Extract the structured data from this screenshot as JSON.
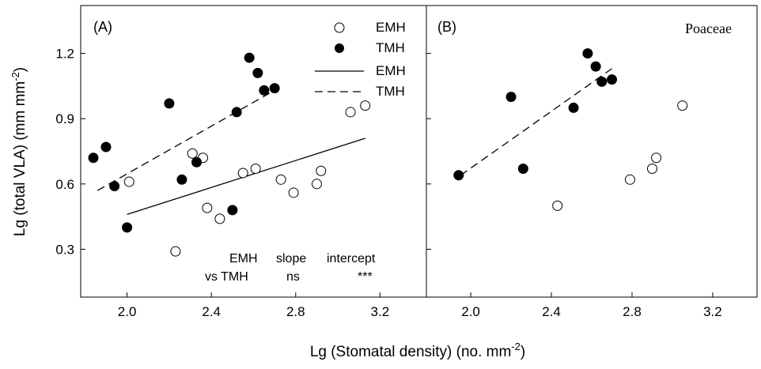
{
  "figure": {
    "ylabel": "Lg (total VLA) (mm mm",
    "ylabel_sup": "-2",
    "ylabel_end": ")",
    "xlabel": "Lg (Stomatal density) (no. mm",
    "xlabel_sup": "-2",
    "xlabel_end": ")"
  },
  "chart_data": [
    {
      "type": "scatter",
      "panel_label": "(A)",
      "xlim": [
        1.78,
        3.42
      ],
      "ylim": [
        0.08,
        1.42
      ],
      "xticks": [
        2.0,
        2.4,
        2.8,
        3.2
      ],
      "xtick_labels": [
        "2.0",
        "2.4",
        "2.8",
        "3.2"
      ],
      "yticks": [
        0.3,
        0.6,
        0.9,
        1.2
      ],
      "ytick_labels": [
        "0.3",
        "0.6",
        "0.9",
        "1.2"
      ],
      "grid": false,
      "legend_position": "top-right",
      "legend": [
        {
          "label": "EMH",
          "kind": "open-circle"
        },
        {
          "label": "TMH",
          "kind": "filled-circle"
        },
        {
          "label": "EMH",
          "kind": "solid-line"
        },
        {
          "label": "TMH",
          "kind": "dashed-line"
        }
      ],
      "series": [
        {
          "name": "EMH",
          "marker": "open",
          "points": [
            [
              2.01,
              0.61
            ],
            [
              2.23,
              0.29
            ],
            [
              2.31,
              0.74
            ],
            [
              2.36,
              0.72
            ],
            [
              2.38,
              0.49
            ],
            [
              2.44,
              0.44
            ],
            [
              2.55,
              0.65
            ],
            [
              2.61,
              0.67
            ],
            [
              2.73,
              0.62
            ],
            [
              2.79,
              0.56
            ],
            [
              2.9,
              0.6
            ],
            [
              2.92,
              0.66
            ],
            [
              3.06,
              0.93
            ],
            [
              3.13,
              0.96
            ]
          ]
        },
        {
          "name": "TMH",
          "marker": "filled",
          "points": [
            [
              1.84,
              0.72
            ],
            [
              1.9,
              0.77
            ],
            [
              1.94,
              0.59
            ],
            [
              2.0,
              0.4
            ],
            [
              2.2,
              0.97
            ],
            [
              2.26,
              0.62
            ],
            [
              2.33,
              0.7
            ],
            [
              2.5,
              0.48
            ],
            [
              2.52,
              0.93
            ],
            [
              2.58,
              1.18
            ],
            [
              2.62,
              1.11
            ],
            [
              2.65,
              1.03
            ],
            [
              2.7,
              1.04
            ]
          ]
        }
      ],
      "fits": [
        {
          "name": "EMH",
          "style": "solid",
          "x": [
            2.0,
            3.13
          ],
          "y": [
            0.46,
            0.81
          ]
        },
        {
          "name": "TMH",
          "style": "dashed",
          "x": [
            1.86,
            2.7
          ],
          "y": [
            0.57,
            1.03
          ]
        }
      ],
      "annotation": {
        "row1": [
          "EMH",
          "slope",
          "intercept"
        ],
        "row2": [
          "vs TMH",
          "ns",
          "***"
        ]
      }
    },
    {
      "type": "scatter",
      "panel_label": "(B)",
      "title": "Poaceae",
      "xlim": [
        1.78,
        3.42
      ],
      "ylim": [
        0.08,
        1.42
      ],
      "xticks": [
        2.0,
        2.4,
        2.8,
        3.2
      ],
      "xtick_labels": [
        "2.0",
        "2.4",
        "2.8",
        "3.2"
      ],
      "yticks": [
        0.3,
        0.6,
        0.9,
        1.2
      ],
      "grid": false,
      "series": [
        {
          "name": "EMH",
          "marker": "open",
          "points": [
            [
              2.43,
              0.5
            ],
            [
              2.79,
              0.62
            ],
            [
              2.9,
              0.67
            ],
            [
              2.92,
              0.72
            ],
            [
              3.05,
              0.96
            ]
          ]
        },
        {
          "name": "TMH",
          "marker": "filled",
          "points": [
            [
              1.94,
              0.64
            ],
            [
              2.2,
              1.0
            ],
            [
              2.26,
              0.67
            ],
            [
              2.51,
              0.95
            ],
            [
              2.58,
              1.2
            ],
            [
              2.62,
              1.14
            ],
            [
              2.65,
              1.07
            ],
            [
              2.7,
              1.08
            ]
          ]
        }
      ],
      "fits": [
        {
          "name": "TMH",
          "style": "dashed",
          "x": [
            1.95,
            2.7
          ],
          "y": [
            0.64,
            1.13
          ]
        }
      ]
    }
  ]
}
